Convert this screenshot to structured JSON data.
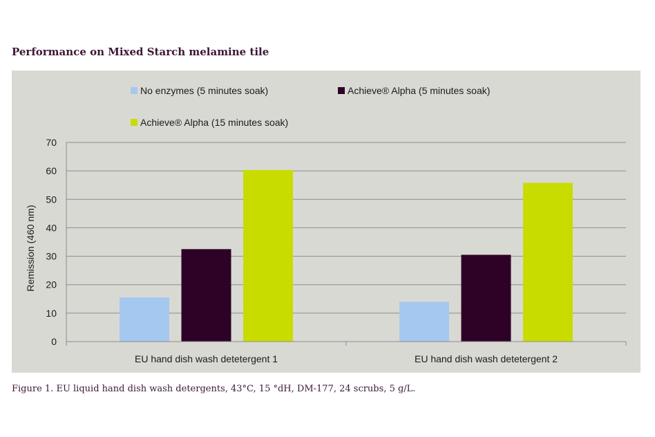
{
  "header": {
    "title": "Performance on Mixed Starch melamine tile"
  },
  "figure": {
    "caption": "Figure 1. EU liquid hand dish wash detergents, 43°C, 15 °dH, DM-177, 24 scrubs, 5 g/L."
  },
  "chart_data": {
    "type": "bar",
    "title": "",
    "xlabel": "",
    "ylabel": "Remission (460 nm)",
    "ylim": [
      0,
      70
    ],
    "yticks": [
      "0",
      "10",
      "20",
      "30",
      "40",
      "50",
      "60",
      "70"
    ],
    "grid": true,
    "legend_position": "top",
    "categories": [
      "EU hand dish wash detetergent 1",
      "EU hand dish wash detetergent 2"
    ],
    "series": [
      {
        "name": "No enzymes (5 minutes soak)",
        "color": "#a5c8f0",
        "values": [
          15.5,
          14
        ]
      },
      {
        "name": "Achieve® Alpha (5 minutes soak)",
        "color": "#2d0226",
        "values": [
          32.5,
          30.5
        ]
      },
      {
        "name": "Achieve® Alpha (15 minutes soak)",
        "color": "#c8dc00",
        "values": [
          60.3,
          55.8
        ]
      }
    ]
  }
}
